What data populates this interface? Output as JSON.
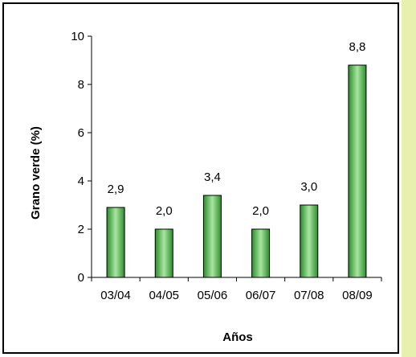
{
  "chart_data": {
    "type": "bar",
    "title": "",
    "xlabel": "Años",
    "ylabel": "Grano verde (%)",
    "categories": [
      "03/04",
      "04/05",
      "05/06",
      "06/07",
      "07/08",
      "08/09"
    ],
    "values": [
      2.9,
      2.0,
      3.4,
      2.0,
      3.0,
      8.8
    ],
    "data_labels": [
      "2,9",
      "2,0",
      "3,4",
      "2,0",
      "3,0",
      "8,8"
    ],
    "ylim": [
      0,
      10
    ],
    "yticks": [
      0,
      2,
      4,
      6,
      8,
      10
    ],
    "grid": false,
    "legend": "none",
    "bar_color": "#2e8b2e",
    "bar_highlight": "#a8e6a0",
    "stripe_color": "#e8f0b0"
  }
}
